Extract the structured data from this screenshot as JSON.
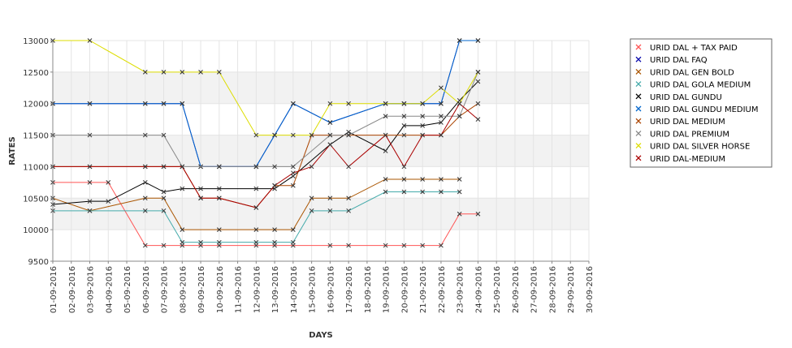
{
  "chart_data": {
    "type": "line",
    "xlabel": "DAYS",
    "ylabel": "RATES",
    "ylim": [
      9500,
      13000
    ],
    "yticks": [
      9500,
      10000,
      10500,
      11000,
      11500,
      12000,
      12500,
      13000
    ],
    "grid": true,
    "legend_position": "right",
    "categories": [
      "01-09-2016",
      "02-09-2016",
      "03-09-2016",
      "04-09-2016",
      "05-09-2016",
      "06-09-2016",
      "07-09-2016",
      "08-09-2016",
      "09-09-2016",
      "10-09-2016",
      "11-09-2016",
      "12-09-2016",
      "13-09-2016",
      "14-09-2016",
      "15-09-2016",
      "16-09-2016",
      "17-09-2016",
      "18-09-2016",
      "19-09-2016",
      "20-09-2016",
      "21-09-2016",
      "22-09-2016",
      "23-09-2016",
      "24-09-2016",
      "25-09-2016",
      "26-09-2016",
      "27-09-2016",
      "28-09-2016",
      "29-09-2016",
      "30-09-2016"
    ],
    "series": [
      {
        "name": "URID DAL + TAX PAID",
        "color": "#ff5555",
        "points": [
          [
            0,
            10750
          ],
          [
            2,
            10750
          ],
          [
            3,
            10750
          ],
          [
            5,
            9750
          ],
          [
            6,
            9750
          ],
          [
            7,
            9750
          ],
          [
            8,
            9750
          ],
          [
            9,
            9750
          ],
          [
            11,
            9750
          ],
          [
            12,
            9750
          ],
          [
            13,
            9750
          ],
          [
            15,
            9750
          ],
          [
            16,
            9750
          ],
          [
            18,
            9750
          ],
          [
            19,
            9750
          ],
          [
            20,
            9750
          ],
          [
            21,
            9750
          ],
          [
            22,
            10250
          ],
          [
            23,
            10250
          ]
        ]
      },
      {
        "name": "URID DAL FAQ",
        "color": "#0000aa",
        "points": [
          [
            0,
            12000
          ],
          [
            2,
            12000
          ],
          [
            5,
            12000
          ],
          [
            6,
            12000
          ],
          [
            7,
            12000
          ],
          [
            8,
            11000
          ],
          [
            9,
            11000
          ],
          [
            11,
            11000
          ],
          [
            12,
            11500
          ],
          [
            13,
            12000
          ],
          [
            15,
            11700
          ],
          [
            18,
            12000
          ],
          [
            19,
            12000
          ],
          [
            20,
            12000
          ],
          [
            21,
            12000
          ],
          [
            22,
            13000
          ],
          [
            23,
            13000
          ]
        ]
      },
      {
        "name": "URID DAL GEN BOLD",
        "color": "#aa5500",
        "points": [
          [
            0,
            10500
          ],
          [
            2,
            10300
          ],
          [
            5,
            10500
          ],
          [
            6,
            10500
          ],
          [
            7,
            10000
          ],
          [
            9,
            10000
          ],
          [
            11,
            10000
          ],
          [
            12,
            10000
          ],
          [
            13,
            10000
          ],
          [
            14,
            10500
          ],
          [
            15,
            10500
          ],
          [
            16,
            10500
          ],
          [
            18,
            10800
          ],
          [
            19,
            10800
          ],
          [
            20,
            10800
          ],
          [
            21,
            10800
          ],
          [
            22,
            10800
          ]
        ]
      },
      {
        "name": "URID DAL GOLA MEDIUM",
        "color": "#44aaaa",
        "points": [
          [
            0,
            10300
          ],
          [
            2,
            10300
          ],
          [
            5,
            10300
          ],
          [
            6,
            10300
          ],
          [
            7,
            9800
          ],
          [
            8,
            9800
          ],
          [
            9,
            9800
          ],
          [
            11,
            9800
          ],
          [
            12,
            9800
          ],
          [
            13,
            9800
          ],
          [
            14,
            10300
          ],
          [
            15,
            10300
          ],
          [
            16,
            10300
          ],
          [
            18,
            10600
          ],
          [
            19,
            10600
          ],
          [
            20,
            10600
          ],
          [
            21,
            10600
          ],
          [
            22,
            10600
          ]
        ]
      },
      {
        "name": "URID DAL GUNDU",
        "color": "#000000",
        "points": [
          [
            0,
            10400
          ],
          [
            2,
            10450
          ],
          [
            3,
            10450
          ],
          [
            5,
            10750
          ],
          [
            6,
            10600
          ],
          [
            7,
            10650
          ],
          [
            8,
            10650
          ],
          [
            9,
            10650
          ],
          [
            11,
            10650
          ],
          [
            12,
            10650
          ],
          [
            13,
            10850
          ],
          [
            15,
            11350
          ],
          [
            16,
            11550
          ],
          [
            18,
            11250
          ],
          [
            19,
            11650
          ],
          [
            20,
            11650
          ],
          [
            21,
            11700
          ],
          [
            22,
            12050
          ],
          [
            23,
            12350
          ]
        ]
      },
      {
        "name": "URID DAL GUNDU MEDIUM",
        "color": "#0066cc",
        "points": [
          [
            0,
            12000
          ],
          [
            2,
            12000
          ],
          [
            5,
            12000
          ],
          [
            6,
            12000
          ],
          [
            7,
            12000
          ],
          [
            8,
            11000
          ],
          [
            9,
            11000
          ],
          [
            11,
            11000
          ],
          [
            12,
            11500
          ],
          [
            13,
            12000
          ],
          [
            15,
            11700
          ],
          [
            18,
            12000
          ],
          [
            19,
            12000
          ],
          [
            20,
            12000
          ],
          [
            21,
            12000
          ],
          [
            22,
            13000
          ],
          [
            23,
            13000
          ]
        ]
      },
      {
        "name": "URID DAL MEDIUM",
        "color": "#aa4400",
        "points": [
          [
            0,
            11000
          ],
          [
            2,
            11000
          ],
          [
            5,
            11000
          ],
          [
            6,
            11000
          ],
          [
            7,
            11000
          ],
          [
            8,
            10500
          ],
          [
            9,
            10500
          ],
          [
            11,
            10350
          ],
          [
            12,
            10700
          ],
          [
            13,
            10700
          ],
          [
            14,
            11500
          ],
          [
            15,
            11500
          ],
          [
            16,
            11500
          ],
          [
            18,
            11500
          ],
          [
            19,
            11500
          ],
          [
            20,
            11500
          ],
          [
            21,
            11500
          ],
          [
            22,
            11800
          ],
          [
            23,
            12000
          ]
        ]
      },
      {
        "name": "URID DAL PREMIUM",
        "color": "#888888",
        "points": [
          [
            0,
            11500
          ],
          [
            2,
            11500
          ],
          [
            5,
            11500
          ],
          [
            6,
            11500
          ],
          [
            7,
            11000
          ],
          [
            9,
            11000
          ],
          [
            11,
            11000
          ],
          [
            12,
            11000
          ],
          [
            13,
            11000
          ],
          [
            15,
            11500
          ],
          [
            16,
            11500
          ],
          [
            18,
            11800
          ],
          [
            19,
            11800
          ],
          [
            20,
            11800
          ],
          [
            21,
            11800
          ],
          [
            22,
            11800
          ],
          [
            23,
            12500
          ]
        ]
      },
      {
        "name": "URID DAL SILVER HORSE",
        "color": "#dddd00",
        "points": [
          [
            0,
            13000
          ],
          [
            2,
            13000
          ],
          [
            5,
            12500
          ],
          [
            6,
            12500
          ],
          [
            7,
            12500
          ],
          [
            8,
            12500
          ],
          [
            9,
            12500
          ],
          [
            11,
            11500
          ],
          [
            12,
            11500
          ],
          [
            13,
            11500
          ],
          [
            14,
            11500
          ],
          [
            15,
            12000
          ],
          [
            16,
            12000
          ],
          [
            18,
            12000
          ],
          [
            19,
            12000
          ],
          [
            20,
            12000
          ],
          [
            21,
            12250
          ],
          [
            22,
            12000
          ],
          [
            23,
            12500
          ]
        ]
      },
      {
        "name": "URID DAL-MEDIUM",
        "color": "#aa0000",
        "points": [
          [
            0,
            11000
          ],
          [
            2,
            11000
          ],
          [
            5,
            11000
          ],
          [
            6,
            11000
          ],
          [
            7,
            11000
          ],
          [
            8,
            10500
          ],
          [
            9,
            10500
          ],
          [
            11,
            10350
          ],
          [
            12,
            10700
          ],
          [
            13,
            10900
          ],
          [
            14,
            11000
          ],
          [
            15,
            11350
          ],
          [
            16,
            11000
          ],
          [
            18,
            11500
          ],
          [
            19,
            11000
          ],
          [
            20,
            11500
          ],
          [
            21,
            11500
          ],
          [
            22,
            12000
          ],
          [
            23,
            11750
          ]
        ]
      }
    ]
  }
}
